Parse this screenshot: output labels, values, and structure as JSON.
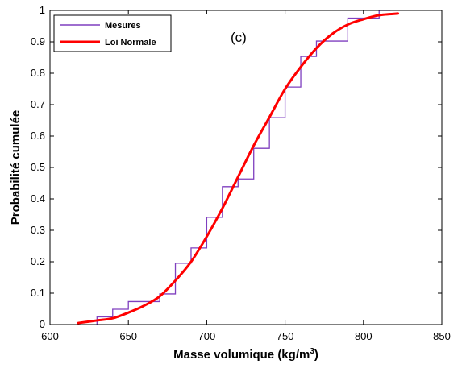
{
  "chart_data": {
    "type": "line",
    "panel_label": "(c)",
    "xlabel": "Masse volumique (kg/m",
    "xlabel_sup": "3",
    "xlabel_end": ")",
    "ylabel": "Probabilité cumulée",
    "xlim": [
      600,
      850
    ],
    "ylim": [
      0,
      1
    ],
    "xticks": [
      600,
      650,
      700,
      750,
      800,
      850
    ],
    "yticks": [
      0,
      0.1,
      0.2,
      0.3,
      0.4,
      0.5,
      0.6,
      0.7,
      0.8,
      0.9,
      1
    ],
    "grid": false,
    "legend_position": "top-left",
    "series": [
      {
        "name": "Mesures",
        "kind": "step",
        "color": "#7f3fbf",
        "x": [
          630,
          640,
          650,
          670,
          680,
          690,
          700,
          710,
          720,
          730,
          740,
          750,
          760,
          770,
          790,
          810
        ],
        "y": [
          0.0244,
          0.0488,
          0.0732,
          0.0976,
          0.1951,
          0.2439,
          0.3415,
          0.439,
          0.4634,
          0.561,
          0.6585,
          0.7561,
          0.8537,
          0.9024,
          0.9756,
          1.0
        ]
      },
      {
        "name": "Loi Normale",
        "kind": "line",
        "color": "#ff0000",
        "x": [
          618,
          630,
          640,
          650,
          660,
          670,
          680,
          690,
          700,
          710,
          720,
          730,
          740,
          750,
          760,
          770,
          780,
          790,
          800,
          810,
          822
        ],
        "y": [
          0.005,
          0.013,
          0.02,
          0.038,
          0.06,
          0.09,
          0.14,
          0.2,
          0.28,
          0.37,
          0.47,
          0.57,
          0.66,
          0.75,
          0.82,
          0.88,
          0.925,
          0.955,
          0.972,
          0.985,
          0.99
        ]
      }
    ]
  }
}
